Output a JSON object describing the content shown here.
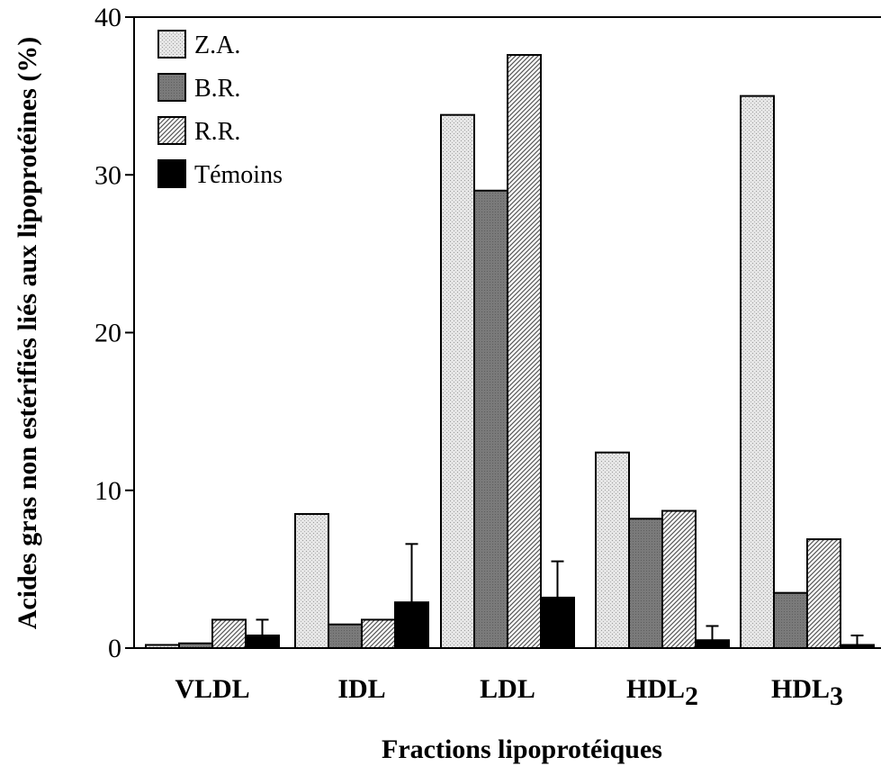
{
  "chart_data": {
    "type": "bar",
    "title": "",
    "xlabel": "Fractions lipoprotéiques",
    "ylabel": "Acides gras non estérifiés liés aux lipoprotéines (%)",
    "ylim": [
      0,
      40
    ],
    "yticks": [
      "0",
      "10",
      "20",
      "30",
      "40"
    ],
    "categories": [
      {
        "base": "VLDL",
        "sub": ""
      },
      {
        "base": "IDL",
        "sub": ""
      },
      {
        "base": "LDL",
        "sub": ""
      },
      {
        "base": "HDL",
        "sub": "2"
      },
      {
        "base": "HDL",
        "sub": "3"
      }
    ],
    "series": [
      {
        "name": "Z.A.",
        "pattern": "light-stipple",
        "values": [
          0.2,
          8.5,
          33.8,
          12.4,
          35.0
        ]
      },
      {
        "name": "B.R.",
        "pattern": "dark-gray",
        "values": [
          0.3,
          1.5,
          29.0,
          8.2,
          3.5
        ]
      },
      {
        "name": "R.R.",
        "pattern": "diagonal-hatch",
        "values": [
          1.8,
          1.8,
          37.6,
          8.7,
          6.9
        ]
      },
      {
        "name": "Témoins",
        "pattern": "solid-black",
        "values": [
          0.8,
          2.9,
          3.2,
          0.5,
          0.2
        ],
        "errors": [
          1.0,
          3.7,
          2.3,
          0.9,
          0.6
        ]
      }
    ],
    "legend_position": "top-left",
    "grid": false
  }
}
